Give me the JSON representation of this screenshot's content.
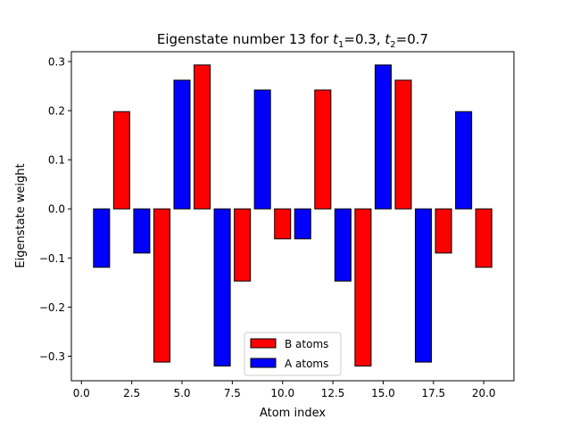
{
  "chart_data": {
    "type": "bar",
    "title": "Eigenstate number 13 for t1=0.3, t2=0.7",
    "title_parts": {
      "prefix": "Eigenstate number 13 for ",
      "t1_symbol": "t",
      "t1_sub": "1",
      "t1_value": "=0.3, ",
      "t2_symbol": "t",
      "t2_sub": "2",
      "t2_value": "=0.7"
    },
    "xlabel": "Atom index",
    "ylabel": "Eigenstate weight",
    "xlim": [
      -0.5,
      21.5
    ],
    "ylim": [
      -0.35,
      0.32
    ],
    "xticks": [
      0.0,
      2.5,
      5.0,
      7.5,
      10.0,
      12.5,
      15.0,
      17.5,
      20.0
    ],
    "xtick_labels": [
      "0.0",
      "2.5",
      "5.0",
      "7.5",
      "10.0",
      "12.5",
      "15.0",
      "17.5",
      "20.0"
    ],
    "yticks": [
      -0.3,
      -0.2,
      -0.1,
      0.0,
      0.1,
      0.2,
      0.3
    ],
    "ytick_labels": [
      "−0.3",
      "−0.2",
      "−0.1",
      "0.0",
      "0.1",
      "0.2",
      "0.3"
    ],
    "grid": false,
    "legend_position": "lower center",
    "series": [
      {
        "name": "B atoms",
        "color": "#ff0000",
        "x": [
          2,
          4,
          6,
          8,
          10,
          12,
          14,
          16,
          18,
          20
        ],
        "values": [
          0.198,
          -0.312,
          0.293,
          -0.147,
          -0.061,
          0.242,
          -0.32,
          0.262,
          -0.09,
          -0.119
        ]
      },
      {
        "name": "A atoms",
        "color": "#0000ff",
        "x": [
          1,
          3,
          5,
          7,
          9,
          11,
          13,
          15,
          17,
          19
        ],
        "values": [
          -0.119,
          -0.09,
          0.262,
          -0.32,
          0.242,
          -0.061,
          -0.147,
          0.293,
          -0.312,
          0.198
        ]
      }
    ]
  }
}
